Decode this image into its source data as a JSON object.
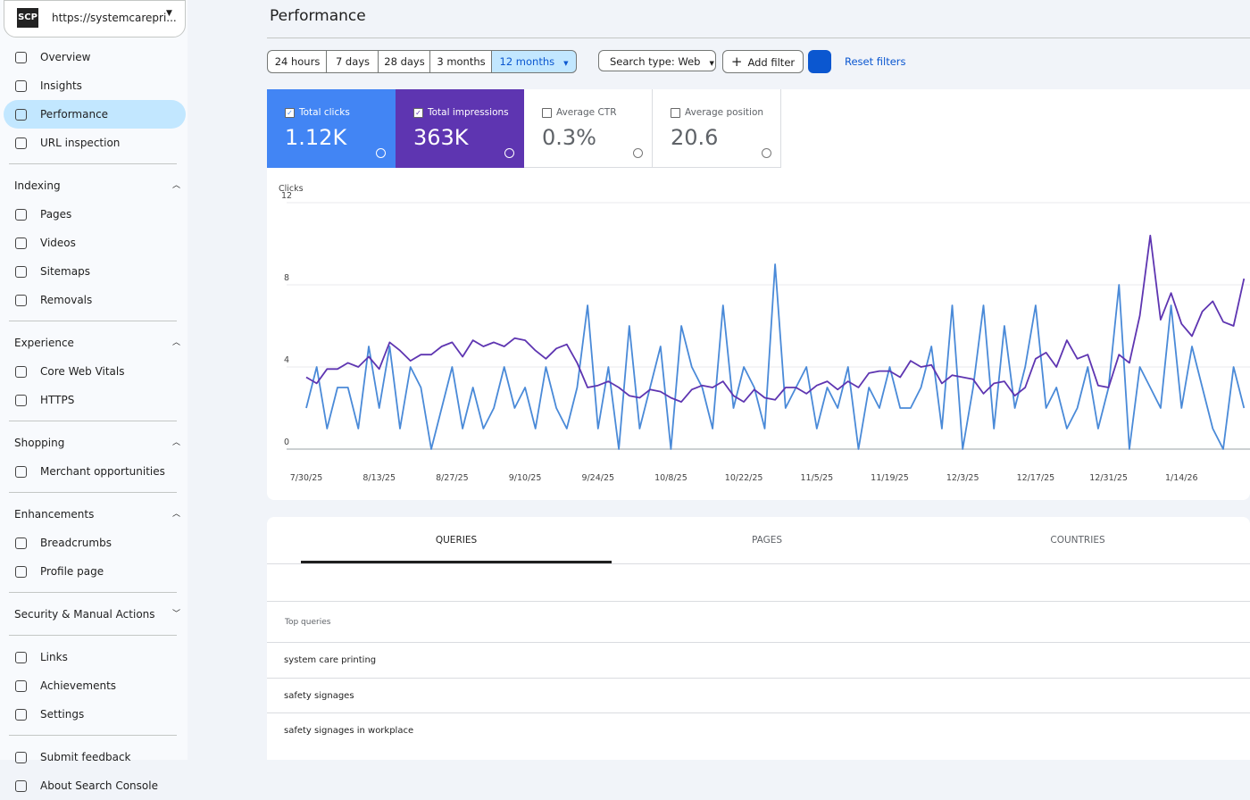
{
  "site": "https://systemcarepri...",
  "page_title": "Performance",
  "nav": [
    {
      "items": [
        "Overview",
        "Insights",
        "Performance",
        "URL inspection"
      ]
    },
    {
      "heading": "Indexing",
      "items": [
        "Pages",
        "Videos",
        "Sitemaps",
        "Removals"
      ]
    },
    {
      "heading": "Experience",
      "items": [
        "Core Web Vitals",
        "HTTPS"
      ]
    },
    {
      "heading": "Shopping",
      "items": [
        "Merchant opportunities"
      ]
    },
    {
      "heading": "Enhancements",
      "items": [
        "Breadcrumbs",
        "Profile page"
      ]
    },
    {
      "heading": "Security & Manual Actions",
      "items": []
    },
    {
      "items": [
        "Links",
        "Achievements",
        "Settings"
      ]
    },
    {
      "items": [
        "Submit feedback",
        "About Search Console"
      ]
    }
  ],
  "active_nav": "Performance",
  "date_ranges": [
    "24 hours",
    "7 days",
    "28 days",
    "3 months",
    "12 months"
  ],
  "active_range": "12 months",
  "search_type": "Search type: Web",
  "add_filter": "Add filter",
  "reset_filters": "Reset filters",
  "metrics": [
    {
      "label": "Total clicks",
      "value": "1.12K"
    },
    {
      "label": "Total impressions",
      "value": "363K"
    },
    {
      "label": "Average CTR",
      "value": "0.3%"
    },
    {
      "label": "Average position",
      "value": "20.6"
    }
  ],
  "chart_data": {
    "type": "line",
    "y_label": "Clicks",
    "categories": [
      "7/30/25",
      null,
      null,
      null,
      null,
      null,
      null,
      "8/13/25",
      null,
      null,
      null,
      null,
      null,
      null,
      "8/27/25",
      null,
      null,
      null,
      null,
      null,
      null,
      "9/10/25",
      null,
      null,
      null,
      null,
      null,
      null,
      "9/24/25",
      null,
      null,
      null,
      null,
      null,
      null,
      "10/8/25",
      null,
      null,
      null,
      null,
      null,
      null,
      "10/22/25",
      null,
      null,
      null,
      null,
      null,
      null,
      "11/5/25",
      null,
      null,
      null,
      null,
      null,
      null,
      "11/19/25",
      null,
      null,
      null,
      null,
      null,
      null,
      "12/3/25",
      null,
      null,
      null,
      null,
      null,
      null,
      "12/17/25",
      null,
      null,
      null,
      null,
      null,
      null,
      "12/31/25",
      null,
      null,
      null,
      null,
      null,
      null,
      "1/14/26",
      null,
      null,
      null,
      null,
      null,
      null
    ],
    "series": [
      {
        "name": "Total clicks",
        "color": "#4a8ad8",
        "values": [
          2,
          4,
          1,
          3,
          3,
          1,
          5,
          2,
          5,
          1,
          4,
          3,
          0,
          2,
          4,
          1,
          3,
          1,
          2,
          4,
          2,
          3,
          1,
          4,
          2,
          1,
          3,
          7,
          1,
          4,
          0,
          6,
          1,
          3,
          5,
          0,
          6,
          4,
          3,
          1,
          7,
          2,
          4,
          3,
          1,
          9,
          2,
          3,
          4,
          1,
          3,
          2,
          4,
          0,
          3,
          2,
          4,
          2,
          2,
          3,
          5,
          1,
          7,
          0,
          3,
          7,
          1,
          6,
          2,
          4,
          7,
          2,
          3,
          1,
          2,
          4,
          1,
          3,
          8,
          0,
          4,
          3,
          2,
          7,
          2,
          5,
          3,
          1,
          0,
          4,
          2
        ]
      },
      {
        "name": "Total impressions",
        "color": "#5e35b1",
        "values": [
          3.5,
          3.2,
          3.9,
          3.9,
          4.2,
          4.0,
          4.5,
          3.9,
          5.2,
          4.8,
          4.3,
          4.6,
          4.6,
          5.0,
          5.2,
          4.5,
          5.3,
          5.0,
          5.2,
          5.0,
          5.4,
          5.3,
          4.8,
          4.4,
          4.9,
          5.1,
          4.2,
          3.0,
          3.1,
          3.3,
          3.0,
          2.6,
          2.5,
          2.9,
          2.8,
          2.5,
          2.3,
          2.9,
          3.1,
          3.0,
          3.3,
          2.6,
          2.3,
          2.9,
          2.5,
          2.4,
          3.0,
          3.0,
          2.7,
          3.1,
          3.3,
          2.9,
          3.3,
          3.0,
          3.7,
          3.8,
          3.8,
          3.5,
          4.3,
          4.0,
          4.1,
          3.2,
          3.6,
          3.5,
          3.4,
          2.7,
          3.2,
          3.3,
          2.6,
          3.0,
          4.4,
          4.7,
          4.0,
          5.3,
          4.4,
          4.6,
          3.1,
          3.0,
          4.6,
          4.2,
          6.5,
          10.4,
          6.3,
          7.6,
          6.1,
          5.5,
          6.7,
          7.2,
          6.2,
          6.0,
          8.3
        ]
      }
    ],
    "ylim": [
      0,
      12
    ],
    "yticks": [
      0,
      4,
      8,
      12
    ],
    "grid": true
  },
  "tabs": [
    "QUERIES",
    "PAGES",
    "COUNTRIES"
  ],
  "table": {
    "header": "Top queries",
    "rows": [
      "system care printing",
      "safety signages",
      "safety signages in workplace"
    ]
  }
}
